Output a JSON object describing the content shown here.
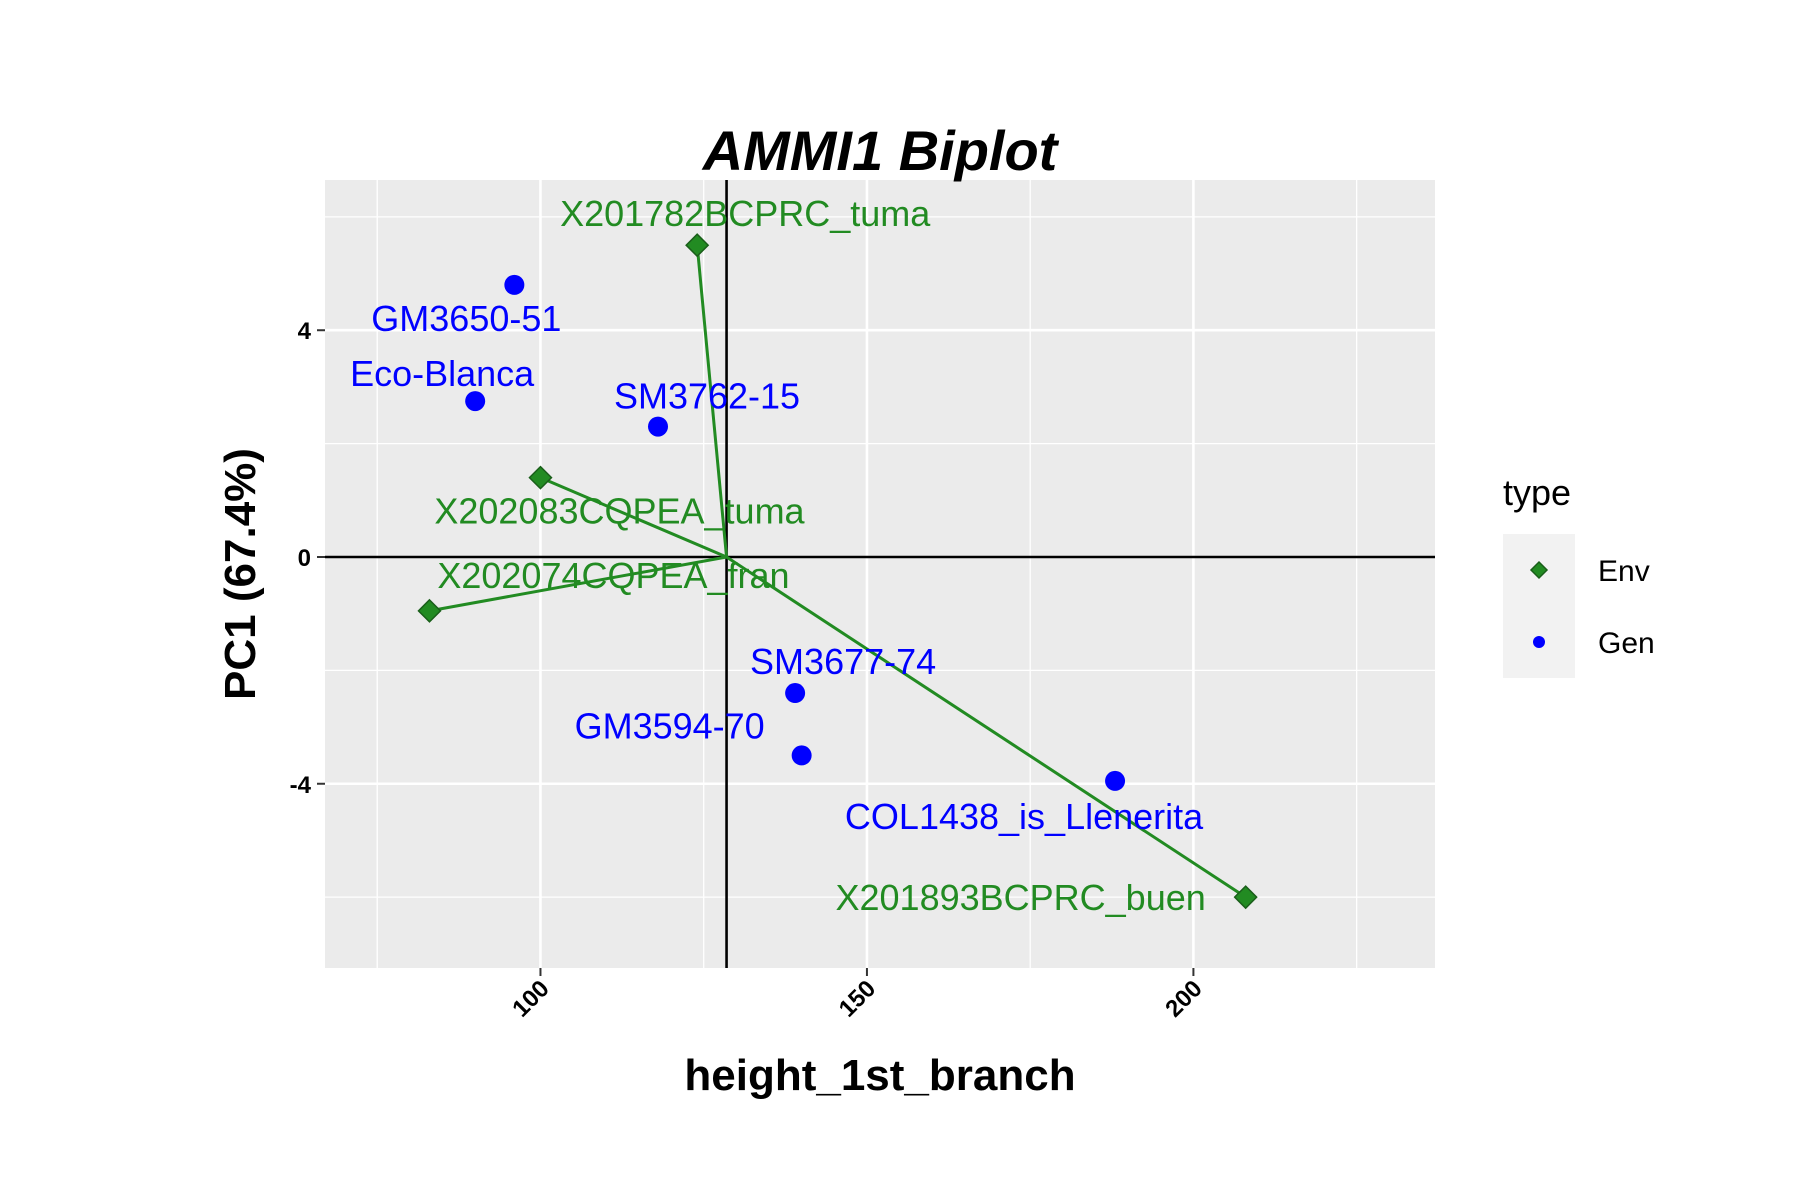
{
  "chart_data": {
    "type": "scatter",
    "title": "AMMI1 Biplot",
    "xlabel": "height_1st_branch",
    "ylabel": "PC1 (67.4%)",
    "xlim": [
      67,
      237
    ],
    "ylim": [
      -7.25,
      6.65
    ],
    "xticks": [
      100,
      150,
      200
    ],
    "xtick_labels": [
      "100",
      "150",
      "200"
    ],
    "yticks": [
      -4,
      0,
      4
    ],
    "ytick_labels": [
      "-4",
      "0",
      "4"
    ],
    "grid": true,
    "origin": {
      "x": 128.5,
      "y": 0
    },
    "colors": {
      "env": "#228B22",
      "gen": "#0000FF",
      "panel": "#EBEBEB",
      "grid": "#FFFFFF"
    },
    "legend": {
      "title": "type",
      "placement": "right",
      "entries": [
        {
          "label": "Env",
          "shape": "diamond",
          "color": "#228B22"
        },
        {
          "label": "Gen",
          "shape": "circle",
          "color": "#0000FF"
        }
      ]
    },
    "series": [
      {
        "name": "Env",
        "points": [
          {
            "label": "X201782BCPRC_tuma",
            "x": 124,
            "y": 5.5
          },
          {
            "label": "X202083CQPEA_tuma",
            "x": 100,
            "y": 1.4
          },
          {
            "label": "X202074CQPEA_fran",
            "x": 83,
            "y": -0.95
          },
          {
            "label": "X201893BCPRC_buen",
            "x": 208,
            "y": -6.0
          }
        ]
      },
      {
        "name": "Gen",
        "points": [
          {
            "label": "GM3650-51",
            "x": 96,
            "y": 4.8
          },
          {
            "label": "Eco-Blanca",
            "x": 90,
            "y": 2.75
          },
          {
            "label": "SM3762-15",
            "x": 118,
            "y": 2.3
          },
          {
            "label": "SM3677-74",
            "x": 139,
            "y": -2.4
          },
          {
            "label": "GM3594-70",
            "x": 140,
            "y": -3.5
          },
          {
            "label": "COL1438_is_Llenerita",
            "x": 188,
            "y": -3.95
          }
        ]
      }
    ]
  }
}
